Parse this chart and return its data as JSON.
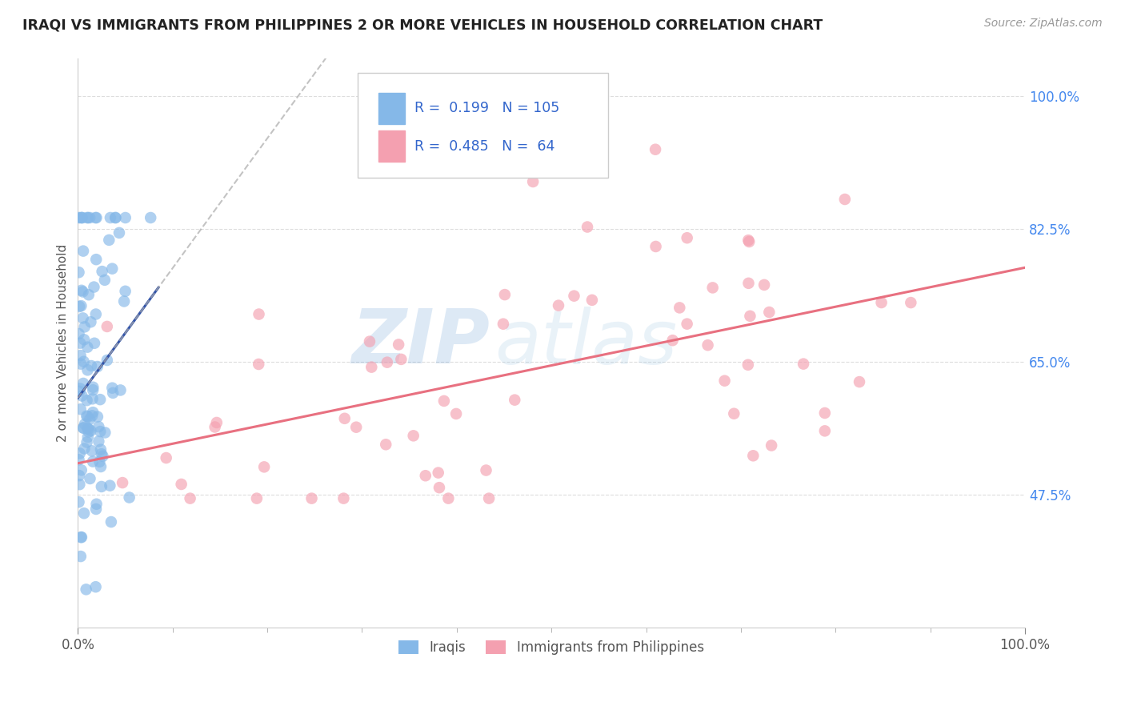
{
  "title": "IRAQI VS IMMIGRANTS FROM PHILIPPINES 2 OR MORE VEHICLES IN HOUSEHOLD CORRELATION CHART",
  "source": "Source: ZipAtlas.com",
  "ylabel": "2 or more Vehicles in Household",
  "legend_labels": [
    "Iraqis",
    "Immigrants from Philippines"
  ],
  "R_iraqis": 0.199,
  "N_iraqis": 105,
  "R_philippines": 0.485,
  "N_philippines": 64,
  "xmin": 0.0,
  "xmax": 100.0,
  "ymin": 30.0,
  "ymax": 105.0,
  "ytick_vals": [
    47.5,
    65.0,
    82.5,
    100.0
  ],
  "color_iraqis": "#85b8e8",
  "color_philippines": "#f4a0b0",
  "color_trend_iraqis": "#3355aa",
  "color_trend_philippines": "#e87080",
  "color_trend_gray": "#aaaaaa",
  "watermark_zip": "ZIP",
  "watermark_atlas": "atlas",
  "background_color": "#ffffff",
  "grid_color": "#dddddd",
  "seed": 12345
}
